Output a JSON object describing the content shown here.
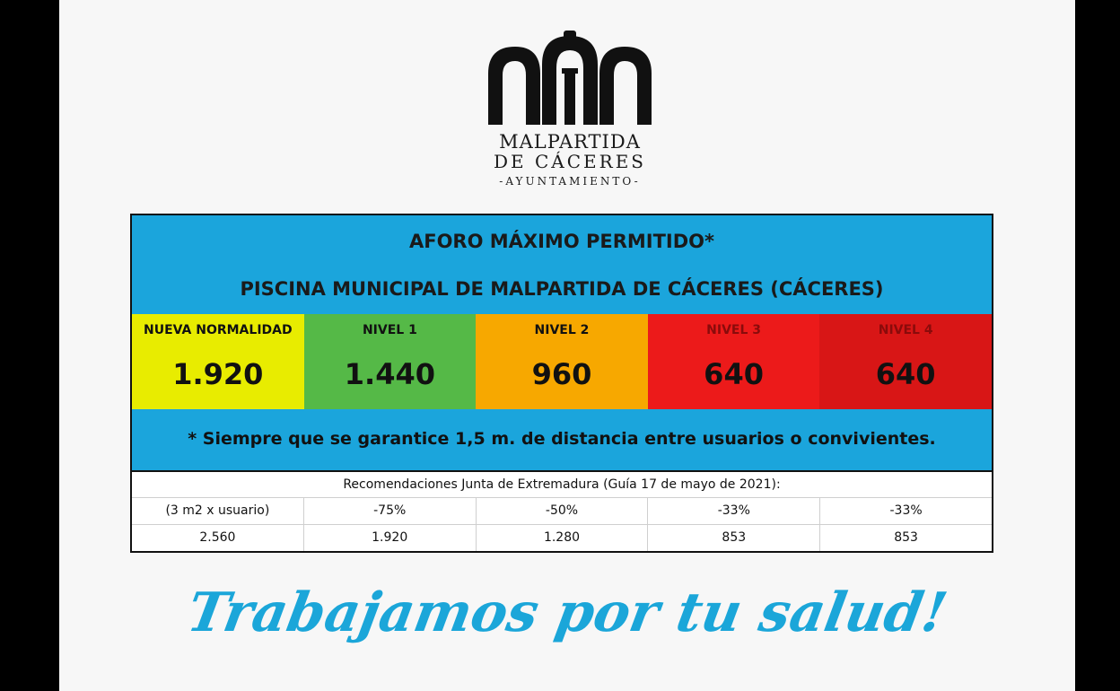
{
  "logo": {
    "line1": "MALPARTIDA",
    "line2": "DE CÁCERES",
    "line3": "-AYUNTAMIENTO-",
    "icon": "arches-emblem-icon"
  },
  "table": {
    "title": "AFORO MÁXIMO PERMITIDO*",
    "subtitle": "PISCINA MUNICIPAL DE MALPARTIDA DE CÁCERES (CÁCERES)",
    "levels": [
      {
        "name": "NUEVA NORMALIDAD",
        "value": "1.920",
        "bg": "#e8ec00",
        "name_color": "#111111"
      },
      {
        "name": "NIVEL 1",
        "value": "1.440",
        "bg": "#55b947",
        "name_color": "#111111"
      },
      {
        "name": "NIVEL 2",
        "value": "960",
        "bg": "#f7a800",
        "name_color": "#111111"
      },
      {
        "name": "NIVEL 3",
        "value": "640",
        "bg": "#ec1a1a",
        "name_color": "#8a0b0b"
      },
      {
        "name": "NIVEL 4",
        "value": "640",
        "bg": "#d81616",
        "name_color": "#8a0b0b"
      }
    ],
    "note": "* Siempre que se garantice 1,5 m. de distancia entre usuarios o convivientes.",
    "recommendations_title": "Recomendaciones Junta de Extremadura (Guía 17 de mayo de 2021):",
    "rec_rows": [
      [
        "(3 m2 x usuario)",
        "-75%",
        "-50%",
        "-33%",
        "-33%"
      ],
      [
        "2.560",
        "1.920",
        "1.280",
        "853",
        "853"
      ]
    ]
  },
  "slogan": "Trabajamos por tu salud!",
  "colors": {
    "band_blue": "#1ba5dc",
    "slogan_blue": "#1ba6d9"
  }
}
